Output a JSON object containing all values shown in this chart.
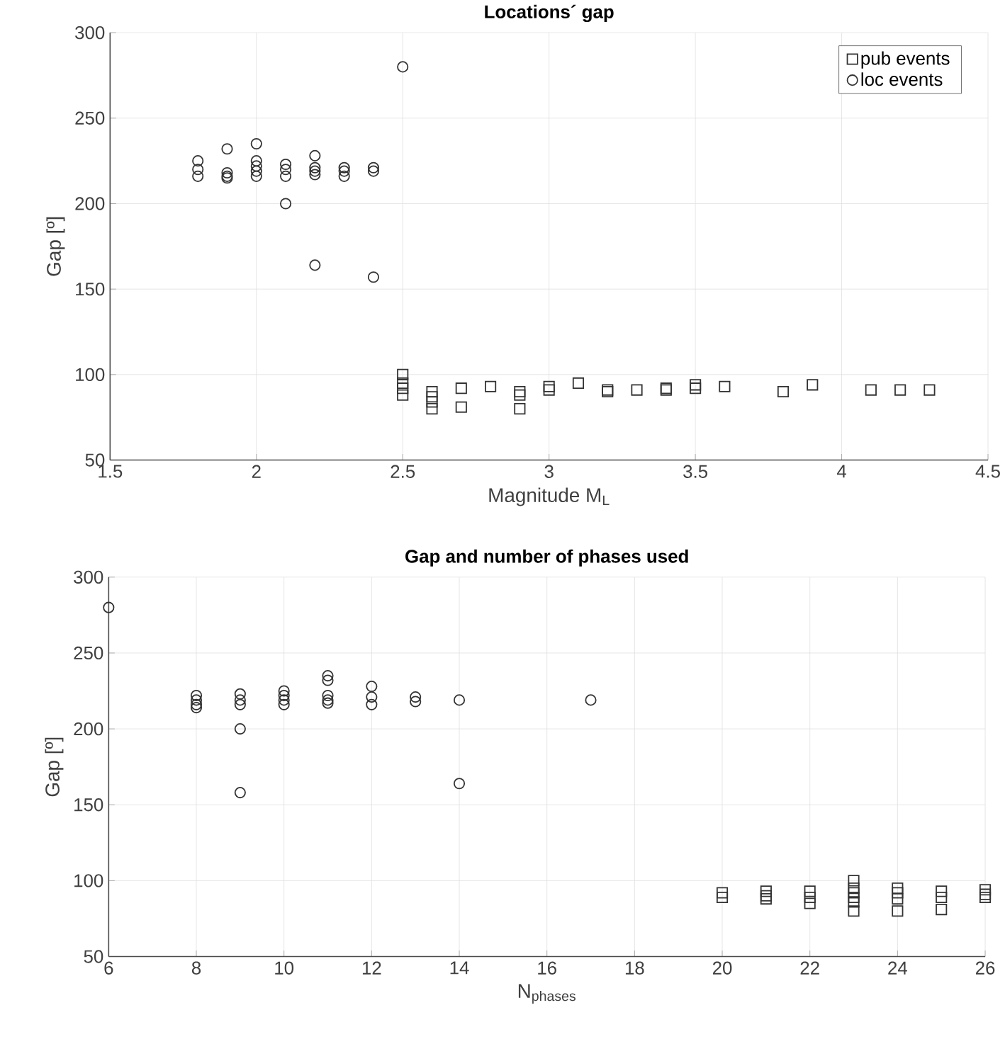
{
  "chart_data": [
    {
      "type": "scatter",
      "title": "Locations´ gap",
      "xlabel": "Magnitude M$_{L}$",
      "ylabel": "Gap [º]",
      "xlim": [
        1.5,
        4.5
      ],
      "xticks": [
        1.5,
        2,
        2.5,
        3,
        3.5,
        4,
        4.5
      ],
      "ylim": [
        50,
        300
      ],
      "yticks": [
        50,
        100,
        150,
        200,
        250,
        300
      ],
      "grid": true,
      "legend": "top right",
      "series": [
        {
          "name": "pub events",
          "color": "#333333",
          "marker": "square",
          "x": [
            2.5,
            2.5,
            2.5,
            2.5,
            2.6,
            2.6,
            2.6,
            2.6,
            2.7,
            2.7,
            2.8,
            2.9,
            2.9,
            2.9,
            3.0,
            3.0,
            3.1,
            3.2,
            3.2,
            3.3,
            3.4,
            3.4,
            3.5,
            3.5,
            3.6,
            3.8,
            3.9,
            4.1,
            4.2,
            4.3
          ],
          "values": [
            100,
            95,
            92,
            88,
            90,
            87,
            84,
            80,
            92,
            81,
            93,
            90,
            88,
            80,
            93,
            91,
            95,
            91,
            90,
            91,
            92,
            91,
            94,
            92,
            93,
            90,
            94,
            91,
            91,
            91
          ]
        },
        {
          "name": "loc events",
          "color": "#333333",
          "marker": "circle",
          "x": [
            1.8,
            1.8,
            1.8,
            1.9,
            1.9,
            1.9,
            1.9,
            2.0,
            2.0,
            2.0,
            2.0,
            2.0,
            2.1,
            2.1,
            2.1,
            2.1,
            2.2,
            2.2,
            2.2,
            2.2,
            2.2,
            2.3,
            2.3,
            2.3,
            2.4,
            2.4,
            2.4,
            2.5
          ],
          "values": [
            225,
            220,
            216,
            232,
            218,
            216,
            215,
            235,
            225,
            222,
            219,
            216,
            223,
            220,
            216,
            200,
            228,
            221,
            219,
            217,
            164,
            221,
            219,
            216,
            221,
            219,
            157,
            280
          ]
        }
      ]
    },
    {
      "type": "scatter",
      "title": "Gap and number of phases used",
      "xlabel": "N$_{phases}$",
      "ylabel": "Gap [º]",
      "xlim": [
        6,
        26
      ],
      "xticks": [
        6,
        8,
        10,
        12,
        14,
        16,
        18,
        20,
        22,
        24,
        26
      ],
      "ylim": [
        50,
        300
      ],
      "yticks": [
        50,
        100,
        150,
        200,
        250,
        300
      ],
      "grid": true,
      "series": [
        {
          "color": "#333333",
          "marker": "square",
          "x": [
            20,
            20,
            21,
            21,
            21,
            22,
            22,
            22,
            23,
            23,
            23,
            23,
            23,
            23,
            24,
            24,
            24,
            24,
            25,
            25,
            25,
            26,
            26,
            26
          ],
          "values": [
            92,
            89,
            93,
            90,
            88,
            93,
            89,
            85,
            100,
            95,
            92,
            89,
            86,
            80,
            95,
            92,
            88,
            80,
            93,
            89,
            81,
            94,
            91,
            89
          ]
        },
        {
          "color": "#333333",
          "marker": "circle",
          "x": [
            6,
            8,
            8,
            8,
            8,
            9,
            9,
            9,
            9,
            9,
            10,
            10,
            10,
            10,
            11,
            11,
            11,
            11,
            11,
            12,
            12,
            12,
            13,
            13,
            14,
            14,
            17
          ],
          "values": [
            280,
            222,
            219,
            216,
            214,
            223,
            219,
            216,
            200,
            158,
            225,
            222,
            219,
            216,
            235,
            232,
            222,
            219,
            217,
            228,
            221,
            216,
            221,
            218,
            219,
            164,
            219
          ]
        }
      ]
    }
  ]
}
